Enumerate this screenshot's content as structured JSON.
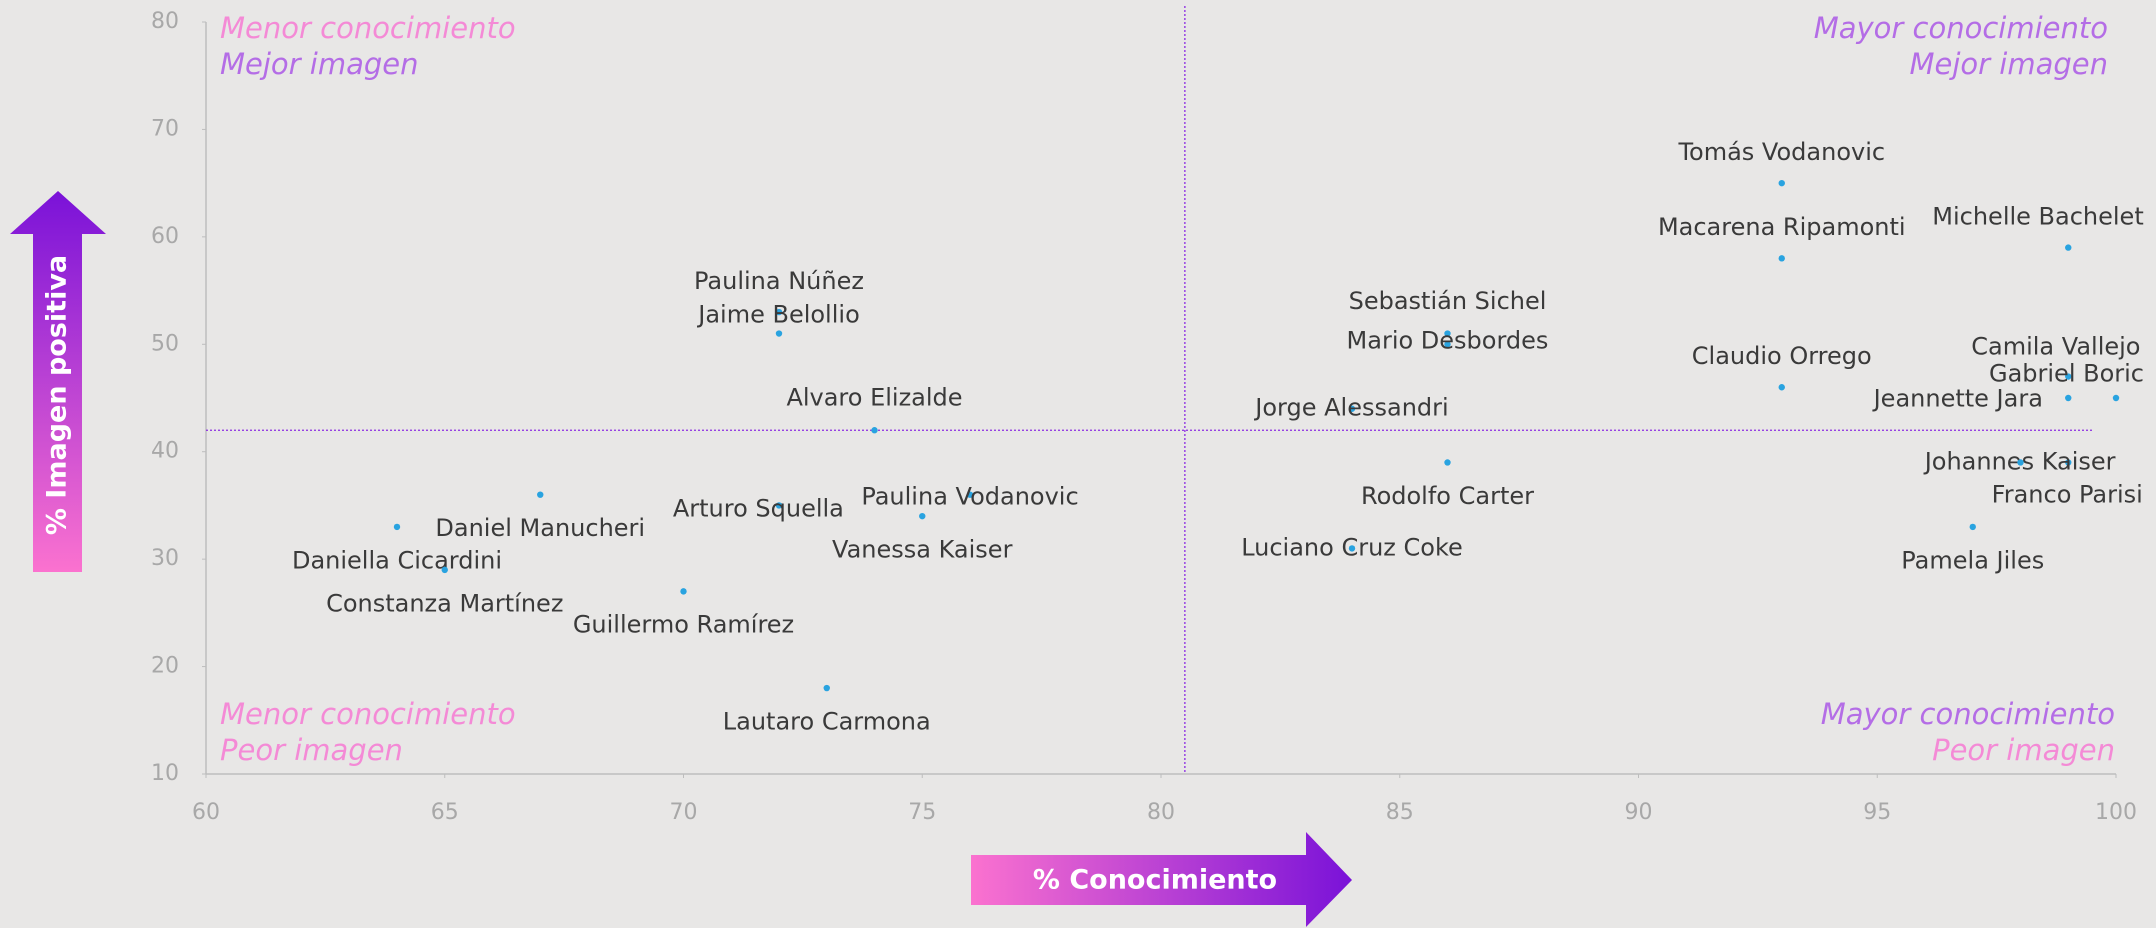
{
  "chart_data": {
    "type": "scatter",
    "x_label": "% Conocimiento",
    "y_label": "% Imagen positiva",
    "labels": [
      "Tomás Vodanovic",
      "Macarena Ripamonti",
      "Michelle Bachelet",
      "Claudio Orrego",
      "Camila Vallejo",
      "Gabriel Boric",
      "Jeannette Jara",
      "Johannes Kaiser",
      "Franco Parisi",
      "Pamela Jiles",
      "Sebastián Sichel",
      "Mario Desbordes",
      "Jorge Alessandri",
      "Rodolfo Carter",
      "Luciano Cruz Coke",
      "Paulina Núñez",
      "Jaime Belollio",
      "Alvaro Elizalde",
      "Paulina Vodanovic",
      "Vanessa Kaiser",
      "Arturo Squella",
      "Daniel Manucheri",
      "Daniella Cicardini",
      "Constanza Martínez",
      "Guillermo Ramírez",
      "Lautaro Carmona"
    ],
    "x": [
      93,
      93,
      99,
      93,
      99,
      100,
      99,
      99,
      98,
      97,
      86,
      86,
      84,
      86,
      84,
      72,
      72,
      74,
      76,
      75,
      72,
      67,
      64,
      65,
      70,
      73
    ],
    "values": [
      65,
      58,
      59,
      46,
      47,
      45,
      45,
      39,
      39,
      33,
      51,
      50,
      44,
      39,
      31,
      53,
      51,
      42,
      36,
      34,
      35,
      36,
      33,
      29,
      27,
      18
    ],
    "color": "#29a3e0",
    "xlim": [
      60,
      100
    ],
    "ylim": [
      10,
      80
    ],
    "xticks": [
      60,
      65,
      70,
      75,
      80,
      85,
      90,
      95,
      100
    ],
    "yticks": [
      10,
      20,
      30,
      40,
      50,
      60,
      70,
      80
    ],
    "x_reference": 80.5,
    "y_reference": 42,
    "reference_color": "#8a2be2",
    "quadrant_labels": [
      {
        "text": "Menor conocimiento",
        "color": "#f48ad6"
      },
      {
        "text": "Mejor imagen",
        "color": "#b46de6"
      },
      {
        "text": "Mayor conocimiento",
        "color": "#b46de6"
      },
      {
        "text": "Mejor imagen",
        "color": "#b46de6"
      },
      {
        "text": "Menor conocimiento",
        "color": "#f48ad6"
      },
      {
        "text": "Peor imagen",
        "color": "#f48ad6"
      },
      {
        "text": "Mayor conocimiento",
        "color": "#b46de6"
      },
      {
        "text": "Peor imagen",
        "color": "#f48ad6"
      }
    ]
  }
}
